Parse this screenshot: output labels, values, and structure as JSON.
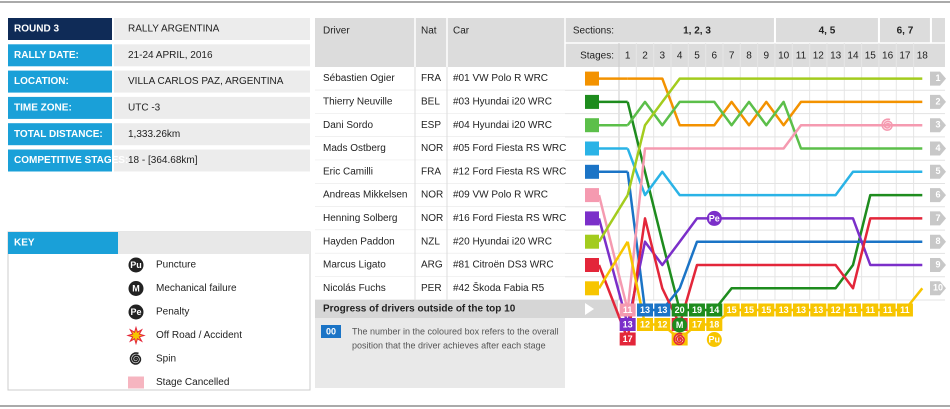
{
  "info": [
    {
      "label": "ROUND 3",
      "value": "RALLY ARGENTINA"
    },
    {
      "label": "RALLY DATE:",
      "value": "21-24 APRIL, 2016"
    },
    {
      "label": "LOCATION:",
      "value": "VILLA CARLOS PAZ, ARGENTINA"
    },
    {
      "label": "TIME ZONE:",
      "value": "UTC -3"
    },
    {
      "label": "TOTAL DISTANCE:",
      "value": "1,333.26km"
    },
    {
      "label": "COMPETITIVE STAGES:",
      "value": "18 - [364.68km]"
    }
  ],
  "key": {
    "title": "KEY",
    "items": [
      {
        "icon": "Pu",
        "label": "Puncture"
      },
      {
        "icon": "M",
        "label": "Mechanical failure"
      },
      {
        "icon": "Pe",
        "label": "Penalty"
      },
      {
        "label": "Off Road / Accident"
      },
      {
        "label": "Spin"
      },
      {
        "label": "Stage Cancelled"
      }
    ]
  },
  "chart": {
    "headers": {
      "driver": "Driver",
      "nat": "Nat",
      "car": "Car",
      "sections": "Sections:",
      "stages": "Stages:"
    },
    "sections": [
      {
        "label": "1, 2, 3",
        "span": [
          1,
          9
        ]
      },
      {
        "label": "4, 5",
        "span": [
          10,
          15
        ]
      },
      {
        "label": "6, 7",
        "span": [
          16,
          18
        ]
      }
    ],
    "stages": [
      1,
      2,
      3,
      4,
      5,
      6,
      7,
      8,
      9,
      10,
      11,
      12,
      13,
      14,
      15,
      16,
      17,
      18
    ],
    "positions": [
      1,
      2,
      3,
      4,
      5,
      6,
      7,
      8,
      9,
      10
    ],
    "series": [
      {
        "name": "Sébastien Ogier",
        "nat": "FRA",
        "car": "#01 VW Polo R WRC",
        "color": "#f39200",
        "positions": [
          1,
          1,
          1,
          3,
          3,
          3,
          2,
          3,
          2,
          3,
          2,
          2,
          2,
          2,
          2,
          2,
          2,
          2
        ]
      },
      {
        "name": "Thierry Neuville",
        "nat": "BEL",
        "car": "#03 Hyundai i20 WRC",
        "color": "#1e8c1e",
        "positions": [
          2,
          5,
          8,
          20,
          19,
          14,
          10,
          10,
          10,
          10,
          10,
          10,
          10,
          9,
          6,
          6,
          6,
          6
        ]
      },
      {
        "name": "Dani Sordo",
        "nat": "ESP",
        "car": "#04 Hyundai i20 WRC",
        "color": "#5cbf4a",
        "positions": [
          3,
          2,
          3,
          2,
          2,
          2,
          3,
          2,
          3,
          2,
          4,
          4,
          4,
          4,
          4,
          4,
          4,
          4
        ]
      },
      {
        "name": "Mads Ostberg",
        "nat": "NOR",
        "car": "#05 Ford Fiesta RS WRC",
        "color": "#2ab3e6",
        "positions": [
          4,
          6,
          5,
          6,
          6,
          6,
          6,
          6,
          6,
          6,
          6,
          6,
          6,
          5,
          5,
          5,
          5,
          5
        ]
      },
      {
        "name": "Eric Camilli",
        "nat": "FRA",
        "car": "#12 Ford Fiesta RS WRC",
        "color": "#1b74c6",
        "positions": [
          5,
          13,
          13,
          10,
          8,
          8,
          8,
          8,
          8,
          8,
          8,
          8,
          8,
          8,
          8,
          8,
          8,
          8
        ]
      },
      {
        "name": "Andreas Mikkelsen",
        "nat": "NOR",
        "car": "#09 VW Polo R WRC",
        "color": "#f59ab0",
        "positions": [
          11,
          4,
          4,
          4,
          4,
          4,
          4,
          4,
          4,
          4,
          3,
          3,
          3,
          3,
          3,
          3,
          3,
          3
        ]
      },
      {
        "name": "Henning Solberg",
        "nat": "NOR",
        "car": "#16 Ford Fiesta RS WRC",
        "color": "#7b2fc9",
        "positions": [
          13,
          8,
          9,
          8,
          7,
          7,
          7,
          7,
          7,
          7,
          7,
          7,
          7,
          7,
          9,
          9,
          9,
          9
        ]
      },
      {
        "name": "Hayden Paddon",
        "nat": "NZL",
        "car": "#20 Hyundai i20 WRC",
        "color": "#a3cc1e",
        "positions": [
          6,
          3,
          2,
          1,
          1,
          1,
          1,
          1,
          1,
          1,
          1,
          1,
          1,
          1,
          1,
          1,
          1,
          1
        ]
      },
      {
        "name": "Marcus Ligato",
        "nat": "ARG",
        "car": "#81 Citroën DS3 WRC",
        "color": "#e3263a",
        "positions": [
          17,
          7,
          10,
          11,
          9,
          9,
          9,
          9,
          9,
          9,
          9,
          9,
          9,
          10,
          7,
          7,
          7,
          7
        ]
      },
      {
        "name": "Nicolás Fuchs",
        "nat": "PER",
        "car": "#42 Škoda Fabia R5",
        "color": "#f7c500",
        "positions": [
          8,
          12,
          12,
          18,
          17,
          18,
          15,
          15,
          15,
          13,
          13,
          13,
          12,
          11,
          11,
          11,
          11,
          10
        ]
      }
    ],
    "events": [
      {
        "series": 1,
        "stage": 4,
        "key_item": 1
      },
      {
        "series": 9,
        "stage": 6,
        "key_item": 0
      },
      {
        "series": 6,
        "stage": 6,
        "key_item": 2
      },
      {
        "series": 8,
        "stage": 4,
        "key_item": 4
      },
      {
        "series": 5,
        "stage": 16,
        "key_item": 4
      }
    ],
    "progress": "Progress of drivers outside of the top 10",
    "note": {
      "box": "00",
      "lines": [
        "The number in the coloured box refers to the overall",
        "position that the driver achieves after each stage"
      ]
    }
  }
}
